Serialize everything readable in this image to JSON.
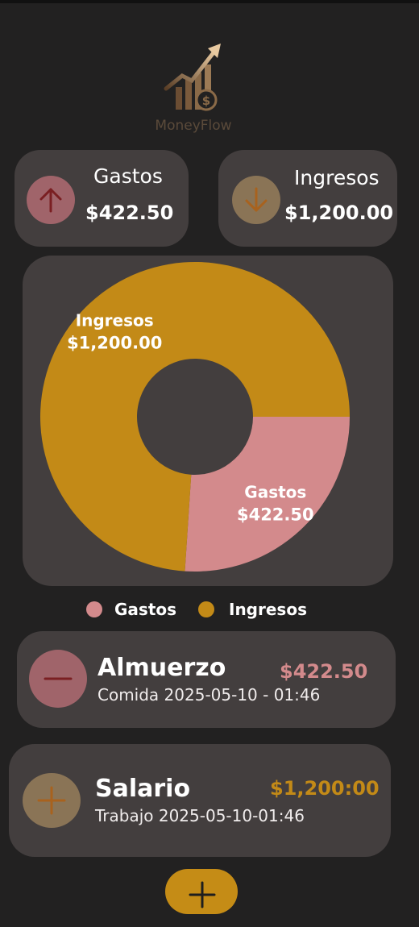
{
  "app": {
    "logo_text": "MoneyFlow"
  },
  "summary": {
    "gastos": {
      "label": "Gastos",
      "value": "$422.50",
      "icon": "arrow-up-icon"
    },
    "ingresos": {
      "label": "Ingresos",
      "value": "$1,200.00",
      "icon": "arrow-down-icon"
    }
  },
  "chart_data": {
    "type": "pie",
    "categories": [
      "Gastos",
      "Ingresos"
    ],
    "values": [
      422.5,
      1200.0
    ],
    "labels": [
      "$422.50",
      "$1,200.00"
    ],
    "colors": [
      "#d38a8c",
      "#c38a17"
    ],
    "donut": true,
    "legend": "bottom"
  },
  "legend": {
    "gastos": "Gastos",
    "ingresos": "Ingresos"
  },
  "transactions": [
    {
      "title": "Almuerzo",
      "subtitle": "Comida 2025-05-10 - 01:46",
      "amount": "$422.50",
      "icon": "minus-icon"
    },
    {
      "title": "Salario",
      "subtitle": "Trabajo 2025-05-10-01:46",
      "amount": "$1,200:00",
      "icon": "plus-icon"
    }
  ],
  "fab": {
    "icon": "plus-icon"
  },
  "colors": {
    "background": "#222121",
    "card": "#433e3e",
    "expense": "#d38a8c",
    "income": "#c38a17"
  }
}
